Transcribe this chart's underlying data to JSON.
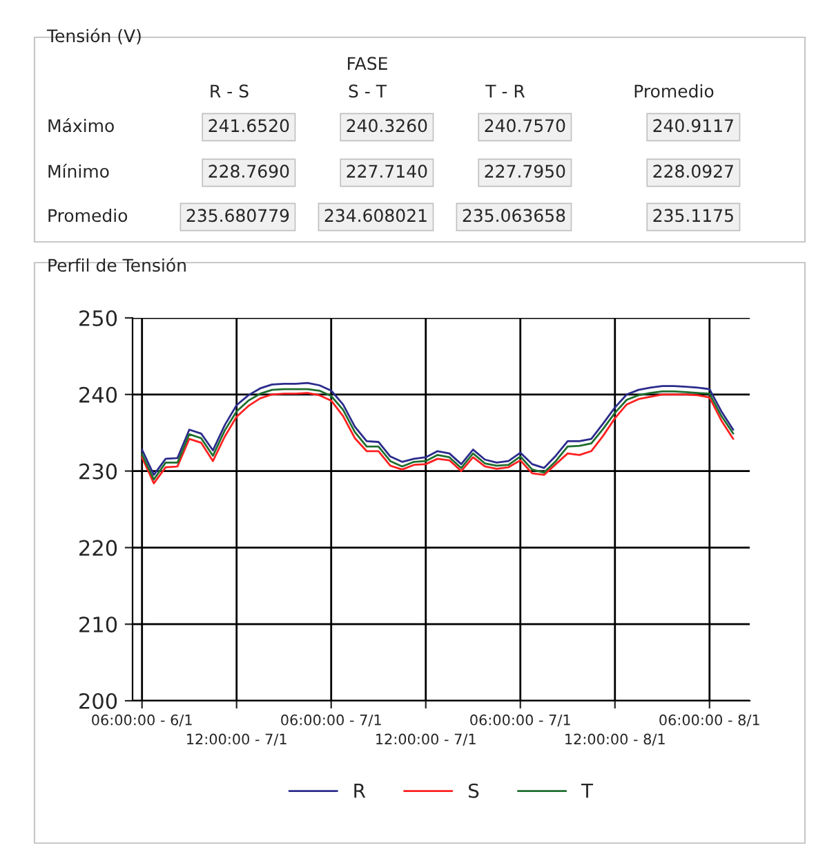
{
  "chart_data": [
    {
      "type": "other",
      "title": "Tensión (V)",
      "annotations": [
        "FASE",
        "R - S",
        "S - T",
        "T - R",
        "Promedio",
        "Máximo",
        "241.6520",
        "240.3260",
        "240.7570",
        "240.9117",
        "Mínimo",
        "228.7690",
        "227.7140",
        "227.7950",
        "228.0927",
        "Promedio",
        "235.680779",
        "234.608021",
        "235.063658",
        "235.1175"
      ]
    },
    {
      "type": "line",
      "title": "Perfil de Tensión",
      "categories": [
        "06:00:00 - 6/1",
        null,
        null,
        null,
        null,
        null,
        null,
        null,
        "12:00:00 - 7/1",
        null,
        null,
        null,
        null,
        null,
        null,
        null,
        "06:00:00 - 7/1",
        null,
        null,
        null,
        null,
        null,
        null,
        null,
        "12:00:00 - 7/1",
        null,
        null,
        null,
        null,
        null,
        null,
        null,
        "06:00:00 - 7/1",
        null,
        null,
        null,
        null,
        null,
        null,
        null,
        "12:00:00 - 8/1",
        null,
        null,
        null,
        null,
        null,
        null,
        null,
        "06:00:00 - 8/1",
        null,
        null
      ],
      "series": [
        {
          "name": "R",
          "color": "#2b2b8c",
          "values": [
            232.8,
            229.5,
            231.6,
            231.7,
            235.4,
            234.9,
            232.7,
            236.0,
            238.6,
            239.9,
            240.8,
            241.3,
            241.4,
            241.4,
            241.5,
            241.2,
            240.5,
            238.7,
            235.8,
            233.9,
            233.8,
            231.9,
            231.2,
            231.6,
            231.8,
            232.6,
            232.3,
            230.9,
            232.8,
            231.5,
            231.1,
            231.3,
            232.4,
            230.9,
            230.4,
            232.0,
            233.9,
            233.9,
            234.2,
            236.2,
            238.3,
            240.0,
            240.6,
            240.9,
            241.1,
            241.1,
            241.0,
            240.9,
            240.7,
            237.8,
            235.4
          ]
        },
        {
          "name": "S",
          "color": "#ff2020",
          "values": [
            231.8,
            228.4,
            230.5,
            230.6,
            234.2,
            233.7,
            231.3,
            234.5,
            237.1,
            238.5,
            239.5,
            240.0,
            240.1,
            240.1,
            240.2,
            239.9,
            239.2,
            237.2,
            234.3,
            232.6,
            232.6,
            230.7,
            230.2,
            230.8,
            230.9,
            231.6,
            231.4,
            230.0,
            231.8,
            230.6,
            230.3,
            230.5,
            231.4,
            229.7,
            229.5,
            230.9,
            232.3,
            232.1,
            232.6,
            234.6,
            236.9,
            238.7,
            239.4,
            239.7,
            240.0,
            240.0,
            240.0,
            239.9,
            239.6,
            236.6,
            234.2
          ]
        },
        {
          "name": "T",
          "color": "#1e6e2e",
          "values": [
            232.2,
            228.9,
            231.1,
            231.1,
            234.8,
            234.3,
            232.0,
            235.3,
            237.8,
            239.2,
            240.1,
            240.6,
            240.7,
            240.7,
            240.7,
            240.5,
            239.8,
            238.0,
            235.1,
            233.2,
            233.2,
            231.3,
            230.6,
            231.2,
            231.3,
            232.1,
            231.8,
            230.4,
            232.3,
            231.0,
            230.7,
            230.8,
            231.9,
            230.2,
            229.8,
            231.3,
            233.2,
            233.3,
            233.6,
            235.5,
            237.6,
            239.3,
            239.9,
            240.2,
            240.4,
            240.4,
            240.3,
            240.2,
            240.1,
            237.2,
            234.9
          ]
        }
      ],
      "ylim": [
        200,
        250
      ],
      "yticks": [
        200,
        210,
        220,
        230,
        240,
        250
      ],
      "grid": true,
      "legend": "bottom",
      "marker": "none",
      "line_style": "solid"
    }
  ]
}
